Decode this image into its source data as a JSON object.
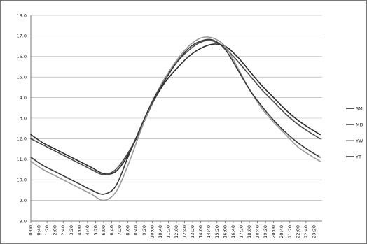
{
  "chart_data": {
    "type": "line",
    "title": "",
    "xlabel": "",
    "ylabel": "",
    "ylim": [
      8.0,
      18.0
    ],
    "yticks": [
      "8.0",
      "9.0",
      "10.0",
      "11.0",
      "12.0",
      "13.0",
      "14.0",
      "15.0",
      "16.0",
      "17.0",
      "18.0"
    ],
    "xticks": [
      "0:00",
      "0:40",
      "1:20",
      "2:00",
      "2:40",
      "3:20",
      "4:00",
      "4:40",
      "5:20",
      "6:00",
      "6:40",
      "7:20",
      "8:00",
      "8:40",
      "9:20",
      "10:00",
      "10:40",
      "11:20",
      "12:00",
      "12:40",
      "13:20",
      "14:00",
      "14:40",
      "15:20",
      "16:00",
      "16:40",
      "17:20",
      "18:00",
      "18:40",
      "19:20",
      "20:00",
      "20:40",
      "21:20",
      "22:00",
      "22:40",
      "23:20"
    ],
    "grid": "horizontal",
    "legend_position": "right",
    "x": [
      "0:00",
      "1:00",
      "2:00",
      "3:00",
      "4:00",
      "5:00",
      "6:00",
      "7:00",
      "8:00",
      "9:00",
      "10:00",
      "11:00",
      "12:00",
      "13:00",
      "14:00",
      "15:00",
      "16:00",
      "17:00",
      "18:00",
      "19:00",
      "20:00",
      "21:00",
      "22:00",
      "23:00",
      "23:50"
    ],
    "series": [
      {
        "name": "SM",
        "color": "#2b2b2b",
        "values": [
          12.2,
          11.8,
          11.5,
          11.2,
          10.9,
          10.6,
          10.3,
          10.4,
          11.2,
          12.4,
          13.7,
          14.7,
          15.4,
          16.0,
          16.4,
          16.6,
          16.5,
          16.0,
          15.3,
          14.6,
          14.0,
          13.4,
          12.9,
          12.5,
          12.2
        ]
      },
      {
        "name": "MD",
        "color": "#4a4a4a",
        "values": [
          12.0,
          11.7,
          11.4,
          11.1,
          10.8,
          10.5,
          10.25,
          10.5,
          11.3,
          12.4,
          13.7,
          14.9,
          15.7,
          16.3,
          16.7,
          16.75,
          16.4,
          15.8,
          15.1,
          14.4,
          13.8,
          13.2,
          12.7,
          12.3,
          12.0
        ]
      },
      {
        "name": "YW",
        "color": "#9a9a9a",
        "values": [
          10.9,
          10.5,
          10.2,
          9.9,
          9.6,
          9.3,
          9.0,
          9.4,
          10.7,
          12.3,
          13.8,
          14.9,
          15.8,
          16.5,
          16.9,
          16.9,
          16.5,
          15.5,
          14.4,
          13.5,
          12.8,
          12.2,
          11.6,
          11.2,
          10.9
        ]
      },
      {
        "name": "YT",
        "color": "#3a3a3a",
        "values": [
          11.1,
          10.7,
          10.4,
          10.1,
          9.8,
          9.5,
          9.3,
          9.7,
          11.1,
          12.5,
          13.8,
          14.8,
          15.7,
          16.4,
          16.75,
          16.8,
          16.35,
          15.4,
          14.4,
          13.6,
          12.9,
          12.3,
          11.8,
          11.4,
          11.1
        ]
      }
    ]
  }
}
